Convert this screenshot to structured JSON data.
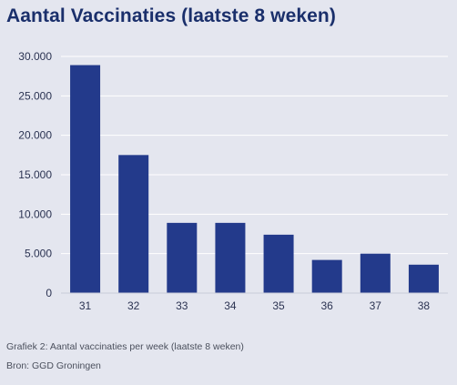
{
  "title": "Aantal Vaccinaties (laatste 8 weken)",
  "caption": "Grafiek 2: Aantal vaccinaties per week (laatste 8 weken)",
  "source": "Bron: GGD Groningen",
  "colors": {
    "background": "#e4e6ef",
    "bar": "#233a8b",
    "grid": "#ffffff",
    "title": "#1a2f6b",
    "tick_text": "#2b3352"
  },
  "chart_data": {
    "type": "bar",
    "categories": [
      "31",
      "32",
      "33",
      "34",
      "35",
      "36",
      "37",
      "38"
    ],
    "values": [
      28900,
      17500,
      8900,
      8900,
      7400,
      4200,
      5000,
      3600
    ],
    "ylim": [
      0,
      30000
    ],
    "yticks": [
      0,
      5000,
      10000,
      15000,
      20000,
      25000,
      30000
    ],
    "ytick_labels": [
      "0",
      "5.000",
      "10.000",
      "15.000",
      "20.000",
      "25.000",
      "30.000"
    ],
    "grid": true
  }
}
